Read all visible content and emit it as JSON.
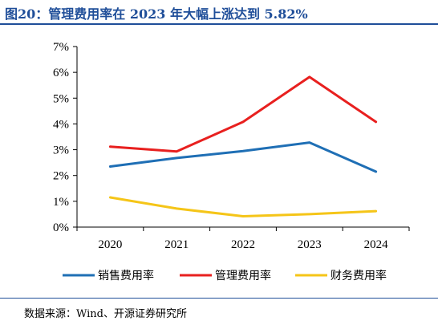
{
  "figure_title": "图20：管理费用率在 2023 年大幅上涨达到 5.82%",
  "source_note": "数据来源：Wind、开源证券研究所",
  "chart_data": {
    "type": "line",
    "title": "",
    "xlabel": "",
    "ylabel": "",
    "categories": [
      "2020",
      "2021",
      "2022",
      "2023",
      "2024"
    ],
    "ylim": [
      0,
      7
    ],
    "yticks": [
      "0%",
      "1%",
      "2%",
      "3%",
      "4%",
      "5%",
      "6%",
      "7%"
    ],
    "grid": false,
    "legend_position": "bottom",
    "series": [
      {
        "name": "销售费用率",
        "color": "#1f6fb5",
        "values": [
          2.35,
          2.68,
          2.95,
          3.28,
          2.15
        ]
      },
      {
        "name": "管理费用率",
        "color": "#e8201f",
        "values": [
          3.12,
          2.93,
          4.08,
          5.82,
          4.08
        ]
      },
      {
        "name": "财务费用率",
        "color": "#f5c518",
        "values": [
          1.15,
          0.72,
          0.42,
          0.5,
          0.62
        ]
      }
    ]
  }
}
